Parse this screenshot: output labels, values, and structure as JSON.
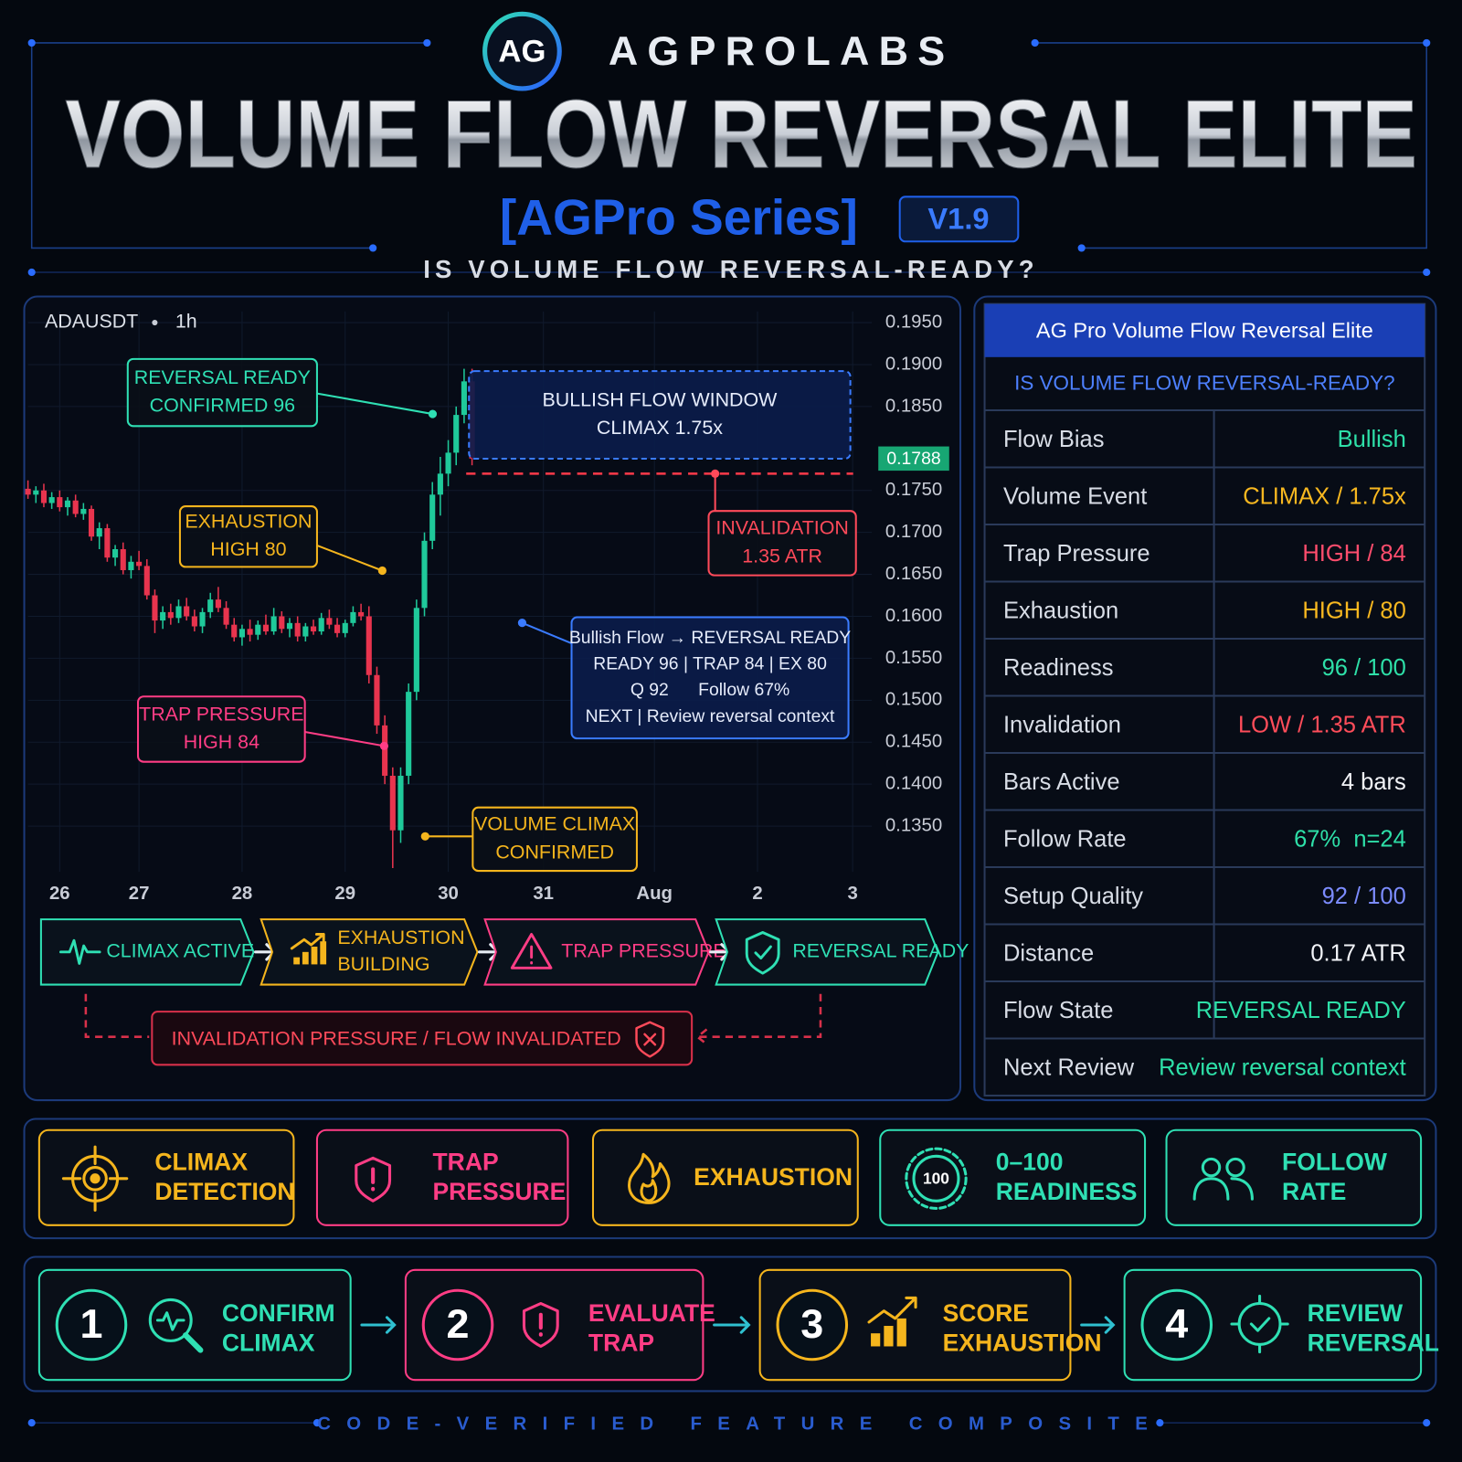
{
  "header": {
    "logo": "AG",
    "brand": "AGPROLABS",
    "title": "VOLUME FLOW REVERSAL ELITE",
    "series": "[AGPro Series]",
    "version": "V1.9",
    "question": "IS VOLUME FLOW REVERSAL-READY?"
  },
  "chart": {
    "type": "candlestick",
    "symbol": "ADAUSDT",
    "timeframe": "1h",
    "up_color": "#1fc99a",
    "down_color": "#e8344e",
    "grid": true,
    "ylim": [
      0.129,
      0.197
    ],
    "yticks": [
      {
        "value": 0.195,
        "label": "0.1950"
      },
      {
        "value": 0.19,
        "label": "0.1900"
      },
      {
        "value": 0.185,
        "label": "0.1850"
      },
      {
        "value": 0.175,
        "label": "0.1750"
      },
      {
        "value": 0.17,
        "label": "0.1700"
      },
      {
        "value": 0.165,
        "label": "0.1650"
      },
      {
        "value": 0.16,
        "label": "0.1600"
      },
      {
        "value": 0.155,
        "label": "0.1550"
      },
      {
        "value": 0.15,
        "label": "0.1500"
      },
      {
        "value": 0.145,
        "label": "0.1450"
      },
      {
        "value": 0.14,
        "label": "0.1400"
      },
      {
        "value": 0.135,
        "label": "0.1350"
      }
    ],
    "xlim": [
      0,
      107
    ],
    "xticks": [
      {
        "value": 4,
        "label": "26"
      },
      {
        "value": 14,
        "label": "27"
      },
      {
        "value": 27,
        "label": "28"
      },
      {
        "value": 40,
        "label": "29"
      },
      {
        "value": 53,
        "label": "30"
      },
      {
        "value": 65,
        "label": "31"
      },
      {
        "value": 79,
        "label": "Aug"
      },
      {
        "value": 92,
        "label": "2"
      },
      {
        "value": 104,
        "label": "3"
      }
    ],
    "last_price": 0.1788,
    "invalidation_level": 0.177,
    "candles": [
      [
        0.1752,
        0.1762,
        0.174,
        0.1745
      ],
      [
        0.1745,
        0.1755,
        0.1735,
        0.175
      ],
      [
        0.175,
        0.1758,
        0.173,
        0.1735
      ],
      [
        0.1735,
        0.1748,
        0.1728,
        0.1742
      ],
      [
        0.1742,
        0.175,
        0.1725,
        0.173
      ],
      [
        0.173,
        0.1742,
        0.172,
        0.1738
      ],
      [
        0.1738,
        0.1745,
        0.1718,
        0.1722
      ],
      [
        0.1722,
        0.1735,
        0.1715,
        0.1728
      ],
      [
        0.1728,
        0.1732,
        0.169,
        0.1695
      ],
      [
        0.1695,
        0.1712,
        0.168,
        0.1705
      ],
      [
        0.1705,
        0.171,
        0.1665,
        0.167
      ],
      [
        0.167,
        0.1685,
        0.166,
        0.168
      ],
      [
        0.168,
        0.1688,
        0.165,
        0.1655
      ],
      [
        0.1655,
        0.1672,
        0.1645,
        0.1665
      ],
      [
        0.1665,
        0.1678,
        0.1655,
        0.166
      ],
      [
        0.166,
        0.1668,
        0.162,
        0.1625
      ],
      [
        0.1625,
        0.1632,
        0.158,
        0.1595
      ],
      [
        0.1595,
        0.1612,
        0.1585,
        0.1605
      ],
      [
        0.1605,
        0.1615,
        0.159,
        0.1598
      ],
      [
        0.1598,
        0.162,
        0.1592,
        0.1612
      ],
      [
        0.1612,
        0.1622,
        0.1595,
        0.16
      ],
      [
        0.16,
        0.1608,
        0.1582,
        0.1588
      ],
      [
        0.1588,
        0.161,
        0.158,
        0.1605
      ],
      [
        0.1605,
        0.1628,
        0.1598,
        0.162
      ],
      [
        0.162,
        0.1635,
        0.1605,
        0.161
      ],
      [
        0.161,
        0.1618,
        0.1585,
        0.159
      ],
      [
        0.159,
        0.1598,
        0.157,
        0.1575
      ],
      [
        0.1575,
        0.159,
        0.1565,
        0.1585
      ],
      [
        0.1585,
        0.1596,
        0.157,
        0.1578
      ],
      [
        0.1578,
        0.1595,
        0.1572,
        0.159
      ],
      [
        0.159,
        0.1602,
        0.1578,
        0.1582
      ],
      [
        0.1582,
        0.161,
        0.1578,
        0.16
      ],
      [
        0.16,
        0.1606,
        0.158,
        0.1585
      ],
      [
        0.1585,
        0.1598,
        0.1575,
        0.1592
      ],
      [
        0.1592,
        0.16,
        0.157,
        0.1576
      ],
      [
        0.1576,
        0.1592,
        0.157,
        0.1588
      ],
      [
        0.1588,
        0.1596,
        0.1578,
        0.1582
      ],
      [
        0.1582,
        0.1604,
        0.1578,
        0.1598
      ],
      [
        0.1598,
        0.1608,
        0.1585,
        0.159
      ],
      [
        0.159,
        0.1598,
        0.1575,
        0.158
      ],
      [
        0.158,
        0.1596,
        0.1575,
        0.1592
      ],
      [
        0.1592,
        0.1612,
        0.1588,
        0.1605
      ],
      [
        0.1605,
        0.1615,
        0.1595,
        0.16
      ],
      [
        0.16,
        0.1612,
        0.152,
        0.153
      ],
      [
        0.153,
        0.154,
        0.146,
        0.147
      ],
      [
        0.147,
        0.1482,
        0.14,
        0.141
      ],
      [
        0.141,
        0.142,
        0.13,
        0.1345
      ],
      [
        0.1345,
        0.142,
        0.133,
        0.141
      ],
      [
        0.141,
        0.152,
        0.14,
        0.151
      ],
      [
        0.151,
        0.162,
        0.15,
        0.161
      ],
      [
        0.161,
        0.17,
        0.16,
        0.169
      ],
      [
        0.169,
        0.176,
        0.168,
        0.1745
      ],
      [
        0.1745,
        0.179,
        0.172,
        0.177
      ],
      [
        0.177,
        0.181,
        0.1755,
        0.1795
      ],
      [
        0.1795,
        0.185,
        0.178,
        0.184
      ],
      [
        0.184,
        0.1895,
        0.183,
        0.188
      ],
      [
        0.188,
        0.1895,
        0.178,
        0.1788
      ]
    ],
    "annotations": [
      {
        "lines": [
          "REVERSAL READY",
          "CONFIRMED 96"
        ],
        "color": "#2fe0b4"
      },
      {
        "lines": [
          "BULLISH FLOW WINDOW",
          "CLIMAX 1.75x"
        ],
        "color": "#3a7bff"
      },
      {
        "lines": [
          "EXHAUSTION",
          "HIGH 80"
        ],
        "color": "#f5b51d"
      },
      {
        "lines": [
          "INVALIDATION",
          "1.35 ATR"
        ],
        "color": "#ff4a5a"
      },
      {
        "lines": [
          "TRAP PRESSURE",
          "HIGH 84"
        ],
        "color": "#ff3d85"
      },
      {
        "lines": [
          "Bullish Flow → REVERSAL READY",
          "READY 96 | TRAP 84 | EX 80",
          "Q 92      Follow 67%",
          "NEXT | Review reversal context"
        ],
        "color": "#3a7bff"
      },
      {
        "lines": [
          "VOLUME CLIMAX",
          "CONFIRMED"
        ],
        "color": "#f5b51d"
      }
    ]
  },
  "flow": {
    "stages": [
      {
        "lines": [
          "CLIMAX ACTIVE"
        ],
        "color": "#2fe0b4"
      },
      {
        "lines": [
          "EXHAUSTION",
          "BUILDING"
        ],
        "color": "#f5b51d"
      },
      {
        "lines": [
          "TRAP PRESSURE"
        ],
        "color": "#ff3d85"
      },
      {
        "lines": [
          "REVERSAL READY"
        ],
        "color": "#2fe0b4"
      }
    ],
    "invalidation": "INVALIDATION PRESSURE / FLOW INVALIDATED"
  },
  "panel": {
    "title": "AG Pro Volume Flow Reversal Elite",
    "question": "IS VOLUME FLOW REVERSAL-READY?",
    "rows": [
      {
        "label": "Flow Bias",
        "value": "Bullish",
        "color": "#2ee0a8"
      },
      {
        "label": "Volume Event",
        "value": "CLIMAX / 1.75x",
        "color": "#f8b820"
      },
      {
        "label": "Trap Pressure",
        "value": "HIGH / 84",
        "color": "#ff4d6d"
      },
      {
        "label": "Exhaustion",
        "value": "HIGH / 80",
        "color": "#f8b820"
      },
      {
        "label": "Readiness",
        "value": "96 / 100",
        "color": "#2ee0a8"
      },
      {
        "label": "Invalidation",
        "value": "LOW / 1.35 ATR",
        "color": "#ff4d5a"
      },
      {
        "label": "Bars Active",
        "value": "4 bars",
        "color": "#f2f4f8"
      },
      {
        "label": "Follow Rate",
        "value": "67%  n=24",
        "color": "#2ee0a8"
      },
      {
        "label": "Setup Quality",
        "value": "92 / 100",
        "color": "#7c8cff"
      },
      {
        "label": "Distance",
        "value": "0.17 ATR",
        "color": "#f2f4f8"
      },
      {
        "label": "Flow State",
        "value": "REVERSAL READY",
        "color": "#2ee0a8"
      },
      {
        "label": "Next Review",
        "value": "Review reversal context",
        "color": "#2ee0a8"
      }
    ]
  },
  "features": [
    {
      "lines": [
        "CLIMAX",
        "DETECTION"
      ],
      "color": "#f5b51d"
    },
    {
      "lines": [
        "TRAP",
        "PRESSURE"
      ],
      "color": "#ff3d85"
    },
    {
      "lines": [
        "EXHAUSTION"
      ],
      "color": "#f5b51d"
    },
    {
      "lines": [
        "0–100",
        "READINESS"
      ],
      "color": "#2fe0b4",
      "badge": "100"
    },
    {
      "lines": [
        "FOLLOW",
        "RATE"
      ],
      "color": "#2fe0b4"
    }
  ],
  "steps": [
    {
      "number": "1",
      "lines": [
        "CONFIRM",
        "CLIMAX"
      ],
      "color": "#2fe0b4"
    },
    {
      "number": "2",
      "lines": [
        "EVALUATE",
        "TRAP"
      ],
      "color": "#ff3d85"
    },
    {
      "number": "3",
      "lines": [
        "SCORE",
        "EXHAUSTION"
      ],
      "color": "#f5b51d"
    },
    {
      "number": "4",
      "lines": [
        "REVIEW",
        "REVERSAL"
      ],
      "color": "#2fe0b4"
    }
  ],
  "footer": "CODE-VERIFIED FEATURE COMPOSITE"
}
